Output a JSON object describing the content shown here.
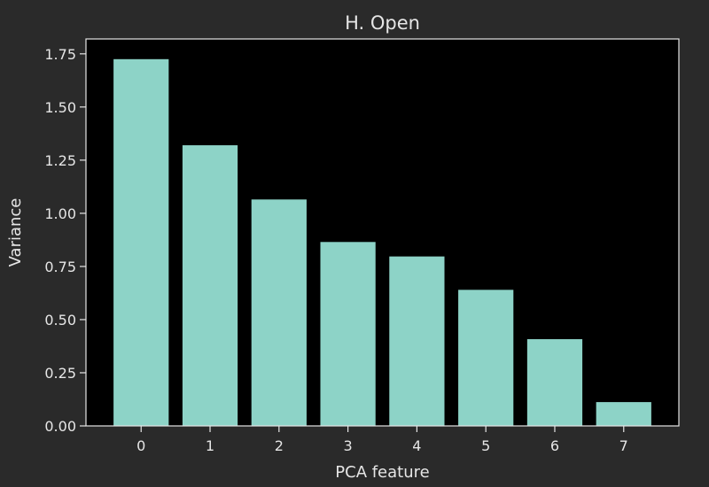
{
  "chart_data": {
    "type": "bar",
    "title": "H. Open",
    "xlabel": "PCA feature",
    "ylabel": "Variance",
    "categories": [
      "0",
      "1",
      "2",
      "3",
      "4",
      "5",
      "6",
      "7"
    ],
    "values": [
      1.725,
      1.32,
      1.065,
      0.865,
      0.797,
      0.64,
      0.408,
      0.112
    ],
    "ylim": [
      0,
      1.82
    ],
    "yticks": [
      0.0,
      0.25,
      0.5,
      0.75,
      1.0,
      1.25,
      1.5,
      1.75
    ],
    "ytick_labels": [
      "0.00",
      "0.25",
      "0.50",
      "0.75",
      "1.00",
      "1.25",
      "1.50",
      "1.75"
    ],
    "grid": false,
    "colors": {
      "figure_background": "#2a2a2a",
      "plot_background": "#000000",
      "bar": "#8dd3c7",
      "axis": "#e6e6e6",
      "text": "#e6e6e6"
    }
  }
}
